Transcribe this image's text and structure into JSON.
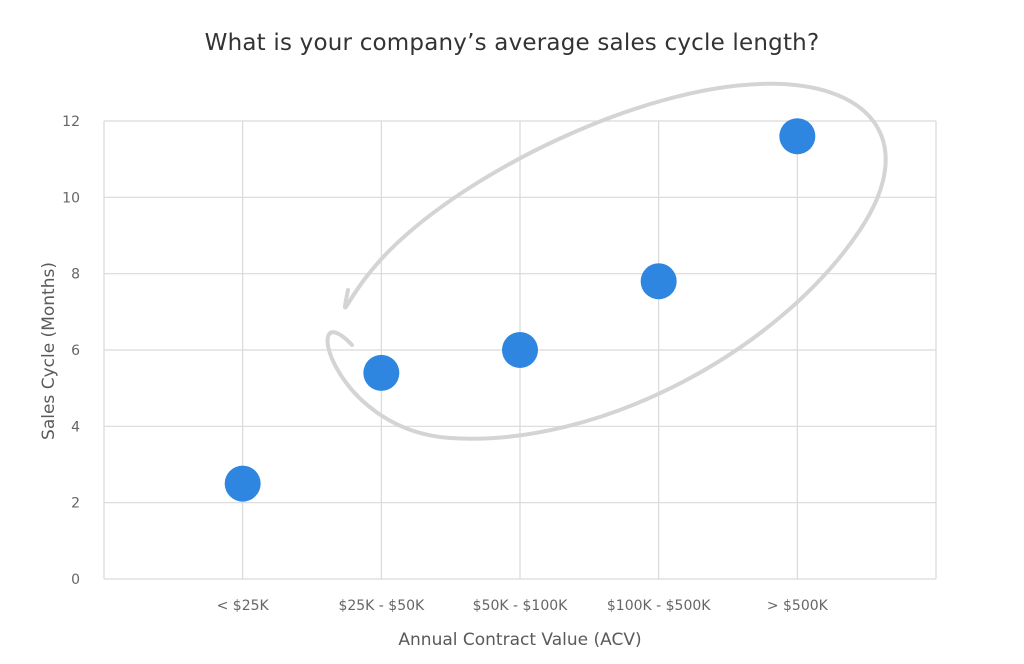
{
  "chart_data": {
    "type": "scatter",
    "title": "What is your company’s average sales cycle length?",
    "xlabel": "Annual Contract Value (ACV)",
    "ylabel": "Sales Cycle (Months)",
    "categories": [
      "< $25K",
      "$25K - $50K",
      "$50K - $100K",
      "$100K - $500K",
      "> $500K"
    ],
    "values": [
      2.5,
      5.4,
      6.0,
      7.8,
      11.6
    ],
    "ylim": [
      0,
      12
    ],
    "yticks": [
      0,
      2,
      4,
      6,
      8,
      10,
      12
    ],
    "grid": true,
    "marker_color": "#2e86e0",
    "highlight_color": "#d4d4d4",
    "gridline_color": "#d9d9d9"
  }
}
